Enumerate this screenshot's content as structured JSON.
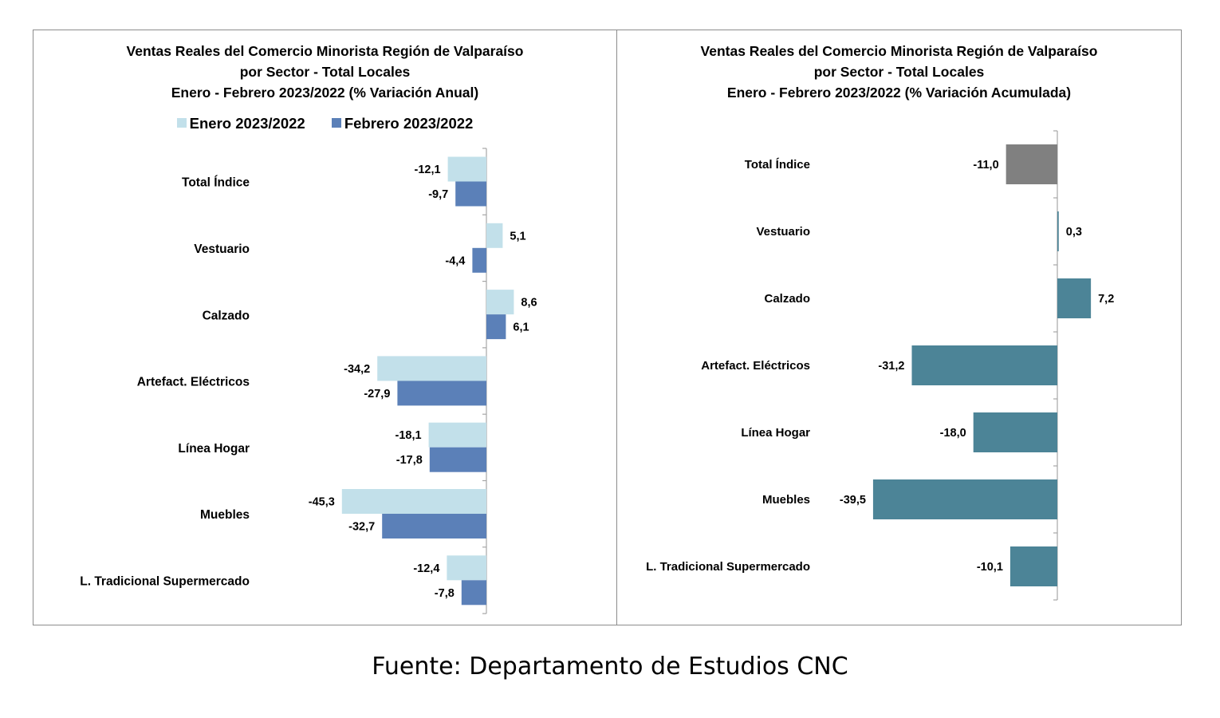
{
  "chart_data": [
    {
      "type": "bar",
      "orientation": "horizontal",
      "title_lines": [
        "Ventas Reales del Comercio Minorista Región de Valparaíso",
        "por Sector - Total Locales",
        "Enero - Febrero 2023/2022 (% Variación Anual)"
      ],
      "categories": [
        "Total Índice",
        "Vestuario",
        "Calzado",
        "Artefact. Eléctricos",
        "Línea Hogar",
        "Muebles",
        "L. Tradicional Supermercado"
      ],
      "series": [
        {
          "name": "Enero 2023/2022",
          "color": "#c2e0ea",
          "values": [
            -12.1,
            5.1,
            8.6,
            -34.2,
            -18.1,
            -45.3,
            -12.4
          ],
          "labels": [
            "-12,1",
            "5,1",
            "8,6",
            "-34,2",
            "-18,1",
            "-45,3",
            "-12,4"
          ]
        },
        {
          "name": "Febrero 2023/2022",
          "color": "#5b80b8",
          "values": [
            -9.7,
            -4.4,
            6.1,
            -27.9,
            -17.8,
            -32.7,
            -7.8
          ],
          "labels": [
            "-9,7",
            "-4,4",
            "6,1",
            "-27,9",
            "-17,8",
            "-32,7",
            "-7,8"
          ]
        }
      ],
      "legend_position": "top",
      "grid": false
    },
    {
      "type": "bar",
      "orientation": "horizontal",
      "title_lines": [
        "Ventas Reales del Comercio Minorista Región de Valparaíso",
        "por Sector  - Total Locales",
        "Enero - Febrero 2023/2022 (% Variación Acumulada)"
      ],
      "categories": [
        "Total Índice",
        "Vestuario",
        "Calzado",
        "Artefact. Eléctricos",
        "Línea Hogar",
        "Muebles",
        "L. Tradicional Supermercado"
      ],
      "series": [
        {
          "values": [
            -11.0,
            0.3,
            7.2,
            -31.2,
            -18.0,
            -39.5,
            -10.1
          ],
          "labels": [
            "-11,0",
            "0,3",
            "7,2",
            "-31,2",
            "-18,0",
            "-39,5",
            "-10,1"
          ],
          "colors": [
            "#808080",
            "#4c8497",
            "#4c8497",
            "#4c8497",
            "#4c8497",
            "#4c8497",
            "#4c8497"
          ]
        }
      ],
      "grid": false
    }
  ],
  "source": "Fuente: Departamento de Estudios CNC"
}
